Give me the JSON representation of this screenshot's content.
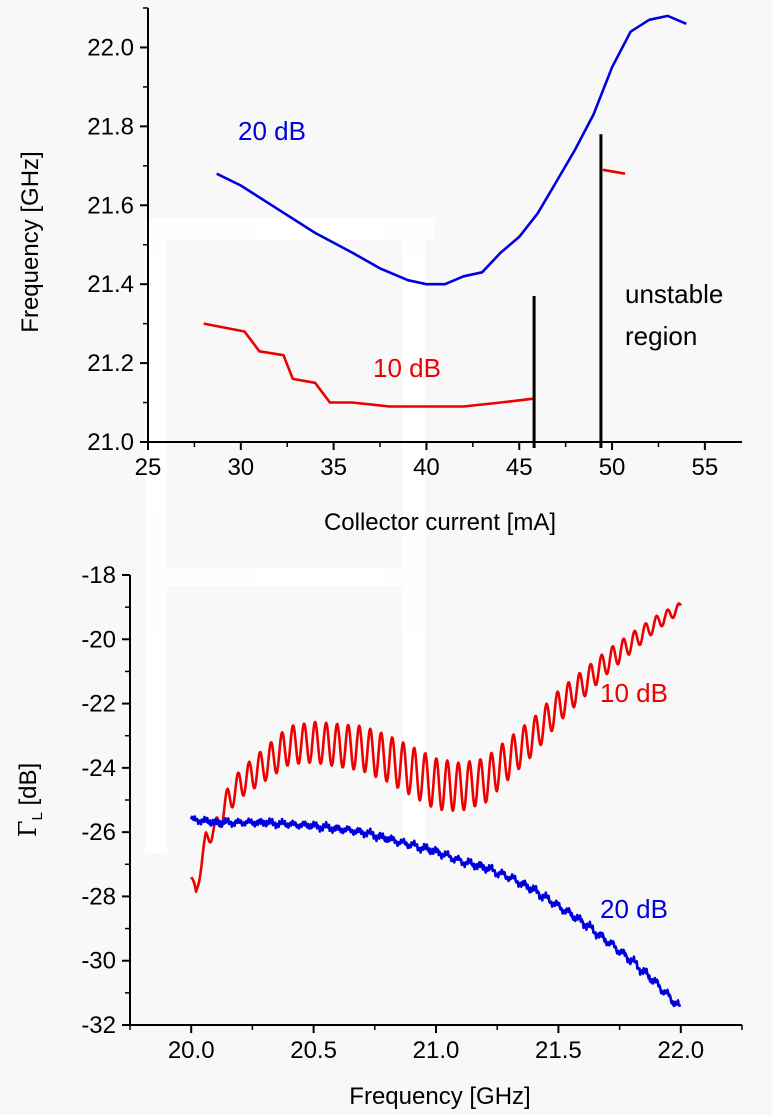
{
  "chart_data": [
    {
      "type": "line",
      "xlabel": "Collector current [mA]",
      "ylabel": "Frequency [GHz]",
      "xlim": [
        25,
        57
      ],
      "ylim": [
        21.0,
        22.1
      ],
      "x_ticks": [
        "25",
        "30",
        "35",
        "40",
        "45",
        "50",
        "55"
      ],
      "y_ticks": [
        "21.0",
        "21.2",
        "21.4",
        "21.6",
        "21.8",
        "22.0"
      ],
      "grid": false,
      "annotations": [
        "20 dB",
        "10 dB",
        "unstable",
        "region"
      ],
      "series": [
        {
          "name": "20 dB",
          "color": "#0000dd",
          "points": [
            [
              28.7,
              21.68
            ],
            [
              30,
              21.65
            ],
            [
              32,
              21.59
            ],
            [
              34,
              21.53
            ],
            [
              36,
              21.48
            ],
            [
              37.5,
              21.44
            ],
            [
              39,
              21.41
            ],
            [
              40,
              21.4
            ],
            [
              41,
              21.4
            ],
            [
              42,
              21.42
            ],
            [
              43,
              21.43
            ],
            [
              44,
              21.48
            ],
            [
              45,
              21.52
            ],
            [
              46,
              21.58
            ],
            [
              47,
              21.66
            ],
            [
              48,
              21.74
            ],
            [
              49,
              21.83
            ],
            [
              50,
              21.95
            ],
            [
              51,
              22.04
            ],
            [
              52,
              22.07
            ],
            [
              53,
              22.08
            ],
            [
              54,
              22.06
            ]
          ]
        },
        {
          "name": "10 dB",
          "color": "#ee0000",
          "points": [
            [
              28,
              21.3
            ],
            [
              30.2,
              21.28
            ],
            [
              31,
              21.23
            ],
            [
              32.3,
              21.22
            ],
            [
              32.8,
              21.16
            ],
            [
              34,
              21.15
            ],
            [
              34.8,
              21.1
            ],
            [
              36,
              21.1
            ],
            [
              38,
              21.09
            ],
            [
              40,
              21.09
            ],
            [
              42,
              21.09
            ],
            [
              44,
              21.1
            ],
            [
              45.8,
              21.11
            ]
          ]
        },
        {
          "name": "10 dB",
          "color": "#ee0000",
          "points": [
            [
              49.5,
              21.69
            ],
            [
              50.7,
              21.68
            ]
          ]
        }
      ],
      "markers": [
        {
          "x": 45.8,
          "y_range": [
            21.0,
            21.37
          ],
          "color": "#000000"
        },
        {
          "x": 49.4,
          "y_range": [
            21.0,
            21.78
          ],
          "color": "#000000"
        }
      ]
    },
    {
      "type": "line",
      "xlabel": "Frequency [GHz]",
      "ylabel": "Γ_L [dB]",
      "xlim": [
        19.75,
        22.25
      ],
      "ylim": [
        -32,
        -18
      ],
      "x_ticks": [
        "20.0",
        "20.5",
        "21.0",
        "21.5",
        "22.0"
      ],
      "y_ticks": [
        "-32",
        "-30",
        "-28",
        "-26",
        "-24",
        "-22",
        "-20",
        "-18"
      ],
      "grid": false,
      "annotations": [
        "10 dB",
        "20 dB"
      ],
      "series": [
        {
          "name": "10 dB",
          "color": "#ee0000",
          "base": [
            [
              20.0,
              -27.4
            ],
            [
              20.02,
              -27.9
            ],
            [
              20.06,
              -26.2
            ],
            [
              20.1,
              -25.9
            ],
            [
              20.15,
              -25.0
            ],
            [
              20.2,
              -24.5
            ],
            [
              20.3,
              -23.9
            ],
            [
              20.4,
              -23.3
            ],
            [
              20.5,
              -23.2
            ],
            [
              20.6,
              -23.3
            ],
            [
              20.7,
              -23.4
            ],
            [
              20.8,
              -23.7
            ],
            [
              20.9,
              -24.1
            ],
            [
              21.0,
              -24.5
            ],
            [
              21.1,
              -24.6
            ],
            [
              21.2,
              -24.4
            ],
            [
              21.3,
              -23.7
            ],
            [
              21.4,
              -23.0
            ],
            [
              21.5,
              -22.1
            ],
            [
              21.6,
              -21.4
            ],
            [
              21.7,
              -20.7
            ],
            [
              21.8,
              -20.1
            ],
            [
              21.9,
              -19.5
            ],
            [
              22.0,
              -19.0
            ]
          ],
          "ripple_period": 0.045,
          "ripple_amplitude": [
            [
              20.0,
              0.1
            ],
            [
              20.15,
              0.4
            ],
            [
              20.4,
              0.6
            ],
            [
              21.0,
              0.8
            ],
            [
              21.2,
              0.7
            ],
            [
              21.5,
              0.5
            ],
            [
              21.8,
              0.3
            ],
            [
              22.0,
              0.15
            ]
          ]
        },
        {
          "name": "20 dB",
          "color": "#0000dd",
          "base": [
            [
              20.0,
              -25.6
            ],
            [
              20.1,
              -25.7
            ],
            [
              20.2,
              -25.7
            ],
            [
              20.3,
              -25.7
            ],
            [
              20.5,
              -25.8
            ],
            [
              20.7,
              -26.0
            ],
            [
              20.9,
              -26.4
            ],
            [
              21.0,
              -26.6
            ],
            [
              21.1,
              -26.9
            ],
            [
              21.2,
              -27.1
            ],
            [
              21.3,
              -27.4
            ],
            [
              21.4,
              -27.8
            ],
            [
              21.5,
              -28.3
            ],
            [
              21.6,
              -28.8
            ],
            [
              21.7,
              -29.4
            ],
            [
              21.8,
              -30.0
            ],
            [
              21.9,
              -30.7
            ],
            [
              22.0,
              -31.5
            ]
          ],
          "ripple_period": 0.045,
          "ripple_amplitude": [
            [
              20.0,
              0.05
            ],
            [
              22.0,
              0.1
            ]
          ]
        }
      ]
    }
  ]
}
